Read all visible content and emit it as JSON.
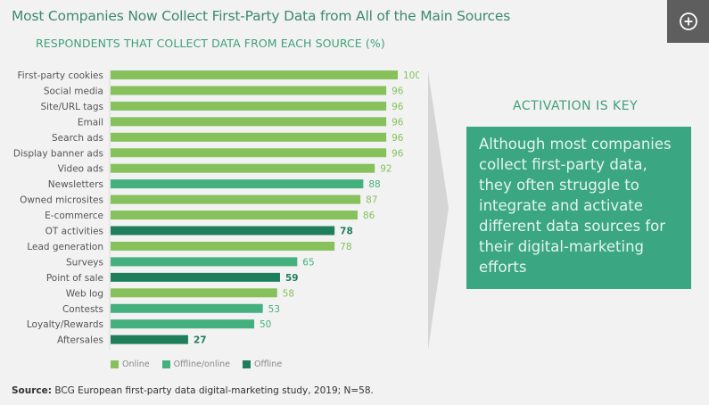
{
  "header": {
    "title": "Most Companies Now Collect First-Party Data from All of the Main Sources",
    "expand_icon": "plus-circle-icon"
  },
  "colors": {
    "online": "#86c15c",
    "offline_online": "#44b07d",
    "offline": "#1f7f5c",
    "title": "#3e8a6c",
    "accent": "#3aa682",
    "chevron": "#d5d5d5"
  },
  "chart_data": {
    "type": "bar",
    "orientation": "horizontal",
    "title": "RESPONDENTS THAT COLLECT DATA FROM EACH SOURCE (%)",
    "xlabel": "",
    "ylabel": "",
    "xlim": [
      0,
      100
    ],
    "grid": false,
    "legend_position": "bottom-left",
    "categories": [
      "First-party cookies",
      "Social media",
      "Site/URL tags",
      "Email",
      "Search ads",
      "Display banner ads",
      "Video ads",
      "Newsletters",
      "Owned microsites",
      "E-commerce",
      "OT activities",
      "Lead generation",
      "Surveys",
      "Point of sale",
      "Web log",
      "Contests",
      "Loyalty/Rewards",
      "Aftersales"
    ],
    "values": [
      100,
      96,
      96,
      96,
      96,
      96,
      92,
      88,
      87,
      86,
      78,
      78,
      65,
      59,
      58,
      53,
      50,
      27
    ],
    "channel": [
      "online",
      "online",
      "online",
      "online",
      "online",
      "online",
      "online",
      "offline_online",
      "online",
      "online",
      "offline",
      "online",
      "offline_online",
      "offline",
      "online",
      "offline_online",
      "offline_online",
      "offline"
    ],
    "legend": [
      {
        "key": "online",
        "label": "Online"
      },
      {
        "key": "offline_online",
        "label": "Offline/online"
      },
      {
        "key": "offline",
        "label": "Offline"
      }
    ]
  },
  "callout": {
    "title": "ACTIVATION IS KEY",
    "text": "Although most companies collect first-party data, they often struggle to integrate and activate different data sources for their digital-marketing efforts"
  },
  "footer": {
    "source_label": "Source:",
    "source_text": " BCG European first-party data digital-marketing study, 2019; N=58."
  }
}
